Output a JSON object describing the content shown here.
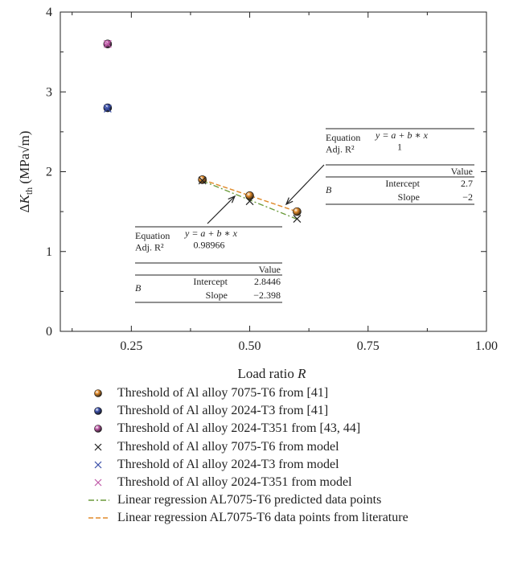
{
  "chart_data": {
    "type": "scatter",
    "xlabel": "Load ratio R",
    "ylabel": "ΔK_th (MPa√m)",
    "xlim": [
      0.1,
      1.0
    ],
    "ylim": [
      0,
      4
    ],
    "xticks": [
      {
        "value": 0.25,
        "label": "0.25"
      },
      {
        "value": 0.5,
        "label": "0.50"
      },
      {
        "value": 0.75,
        "label": "0.75"
      },
      {
        "value": 1.0,
        "label": "1.00"
      }
    ],
    "yticks": [
      {
        "value": 0,
        "label": "0"
      },
      {
        "value": 1,
        "label": "1"
      },
      {
        "value": 2,
        "label": "2"
      },
      {
        "value": 3,
        "label": "3"
      },
      {
        "value": 4,
        "label": "4"
      }
    ],
    "series": [
      {
        "name": "Threshold of Al alloy 7075-T6 from [41]",
        "marker": "ball",
        "color": "#e08a2a",
        "points": [
          {
            "x": 0.4,
            "y": 1.9
          },
          {
            "x": 0.5,
            "y": 1.7
          },
          {
            "x": 0.6,
            "y": 1.5
          }
        ]
      },
      {
        "name": "Threshold of Al alloy 2024-T3 from [41]",
        "marker": "ball",
        "color": "#3a4fa8",
        "points": [
          {
            "x": 0.2,
            "y": 2.8
          }
        ]
      },
      {
        "name": "Threshold of Al alloy 2024-T351 from [43, 44]",
        "marker": "ball",
        "color": "#c05aa8",
        "points": [
          {
            "x": 0.2,
            "y": 3.6
          }
        ]
      },
      {
        "name": "Threshold of Al alloy 7075-T6 from model",
        "marker": "cross",
        "color": "#222222",
        "points": [
          {
            "x": 0.4,
            "y": 1.89
          },
          {
            "x": 0.5,
            "y": 1.63
          },
          {
            "x": 0.6,
            "y": 1.41
          }
        ]
      },
      {
        "name": "Threshold of Al alloy 2024-T3 from model",
        "marker": "cross",
        "color": "#3a4fa8",
        "points": [
          {
            "x": 0.2,
            "y": 2.79
          }
        ]
      },
      {
        "name": "Threshold of Al alloy 2024-T351 from model",
        "marker": "cross",
        "color": "#c05aa8",
        "points": [
          {
            "x": 0.2,
            "y": 3.6
          }
        ]
      },
      {
        "name": "Linear regression AL7075-T6 predicted data points",
        "marker": "dashdot",
        "color": "#6a9a3a",
        "line": {
          "intercept": 2.8446,
          "slope": -2.398,
          "x": [
            0.4,
            0.6
          ]
        }
      },
      {
        "name": "Linear regression AL7075-T6 data points from literature",
        "marker": "dash",
        "color": "#e08a2a",
        "line": {
          "intercept": 2.7,
          "slope": -2,
          "x": [
            0.4,
            0.6
          ]
        }
      }
    ],
    "annotations": [
      {
        "equation_label": "Equation",
        "equation": "y = a + b ∗ x",
        "adjr2_label": "Adj. R²",
        "adjr2": "0.98966",
        "value_header": "Value",
        "group": "B",
        "intercept_label": "Intercept",
        "intercept": "2.8446",
        "slope_label": "Slope",
        "slope": "−2.398"
      },
      {
        "equation_label": "Equation",
        "equation": "y = a + b ∗ x",
        "adjr2_label": "Adj. R²",
        "adjr2": "1",
        "value_header": "Value",
        "group": "B",
        "intercept_label": "Intercept",
        "intercept": "2.7",
        "slope_label": "Slope",
        "slope": "−2"
      }
    ]
  }
}
